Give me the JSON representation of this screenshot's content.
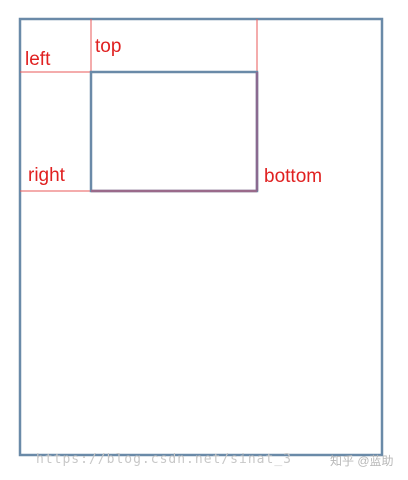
{
  "labels": {
    "left": "left",
    "top": "top",
    "right": "right",
    "bottom": "bottom"
  },
  "watermark": {
    "url": "https://blog.csdn.net/sinat_3",
    "brand": "知乎 @蓝助"
  },
  "colors": {
    "outer_box": "#6a8aa8",
    "inner_box": "#6a8aa8",
    "inner_box_bottom": "#9a6a8a",
    "guide_lines": "#e85a5a",
    "label_text": "#e02020"
  }
}
